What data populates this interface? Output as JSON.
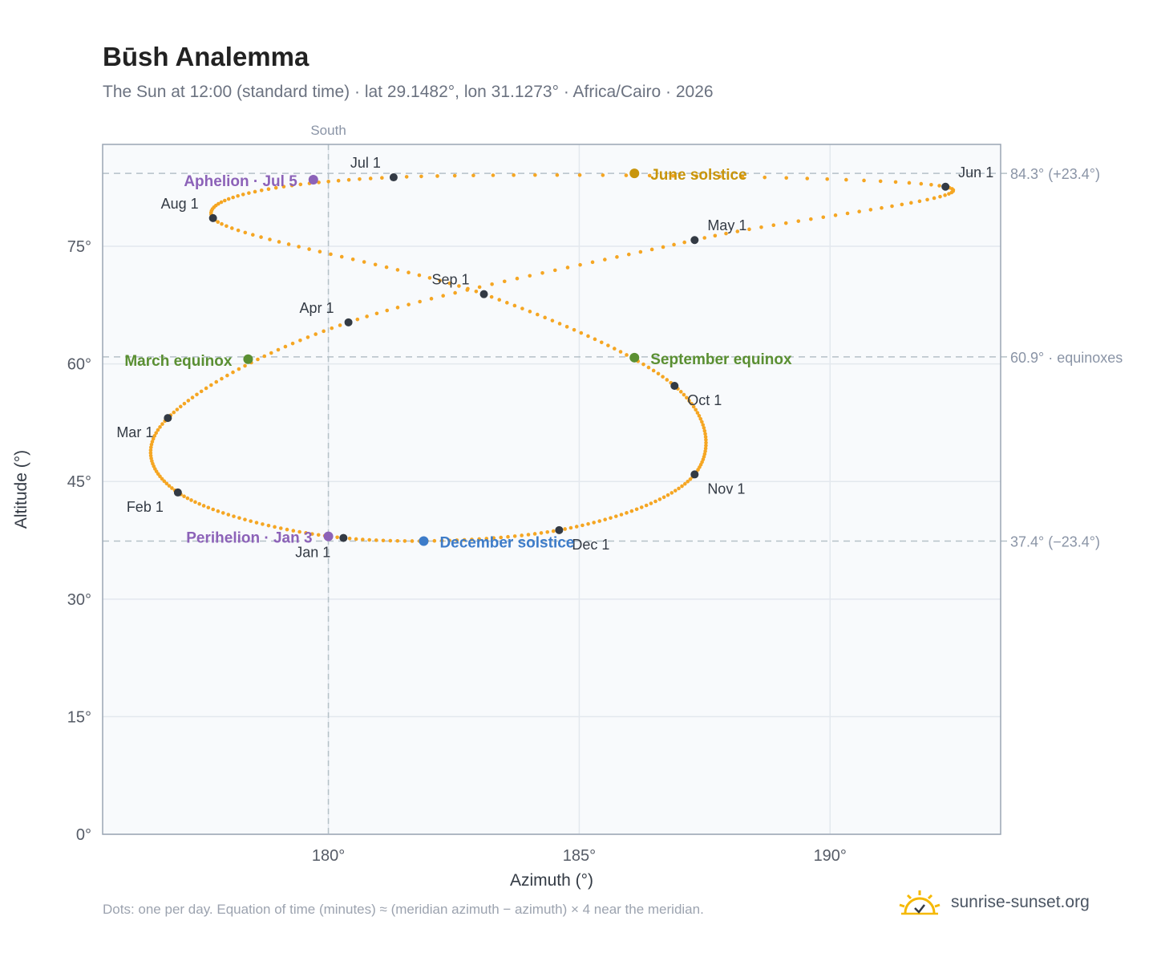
{
  "header": {
    "title": "Būsh Analemma",
    "subtitle": "The Sun at 12:00 (standard time) · lat 29.1482°, lon 31.1273° · Africa/Cairo · 2026"
  },
  "footer": {
    "note": "Dots: one per day. Equation of time (minutes) ≈ (meridian azimuth − azimuth) × 4 near the meridian.",
    "brand": "sunrise-sunset.org"
  },
  "icons": {
    "brand": "sun-icon"
  },
  "colors": {
    "path": "#f5a623",
    "month": "#333a44",
    "june": "#c8950c",
    "equinox": "#5a8f32",
    "december": "#3d7cc9",
    "apsis": "#8c62b8"
  },
  "chart_data": {
    "type": "scatter",
    "xlabel": "Azimuth (°)",
    "ylabel": "Altitude (°)",
    "xlim": [
      175.5,
      193.4
    ],
    "ylim": [
      0,
      88
    ],
    "xticks": [
      180,
      185,
      190
    ],
    "xtick_labels": [
      "180°",
      "185°",
      "190°"
    ],
    "yticks": [
      0,
      15,
      30,
      45,
      60,
      75
    ],
    "ytick_labels": [
      "0°",
      "15°",
      "30°",
      "45°",
      "60°",
      "75°"
    ],
    "grid": true,
    "meridian": {
      "x": 180,
      "label": "South"
    },
    "reference_lines": [
      {
        "y": 84.3,
        "label": "84.3° (+23.4°)"
      },
      {
        "y": 60.9,
        "label": "60.9° · equinoxes"
      },
      {
        "y": 37.4,
        "label": "37.4° (−23.4°)"
      }
    ],
    "monthly_points": [
      {
        "label": "Jan 1",
        "az": 180.3,
        "alt": 37.8
      },
      {
        "label": "Feb 1",
        "az": 177.0,
        "alt": 43.6
      },
      {
        "label": "Mar 1",
        "az": 176.8,
        "alt": 53.1
      },
      {
        "label": "Apr 1",
        "az": 180.4,
        "alt": 65.3
      },
      {
        "label": "May 1",
        "az": 187.3,
        "alt": 75.8
      },
      {
        "label": "Jun 1",
        "az": 192.3,
        "alt": 82.6
      },
      {
        "label": "Jul 1",
        "az": 181.3,
        "alt": 83.8
      },
      {
        "label": "Aug 1",
        "az": 177.7,
        "alt": 78.6
      },
      {
        "label": "Sep 1",
        "az": 183.1,
        "alt": 68.9
      },
      {
        "label": "Oct 1",
        "az": 186.9,
        "alt": 57.2
      },
      {
        "label": "Nov 1",
        "az": 187.3,
        "alt": 45.9
      },
      {
        "label": "Dec 1",
        "az": 184.6,
        "alt": 38.8
      }
    ],
    "events": [
      {
        "label": "June solstice",
        "az": 186.1,
        "alt": 84.3,
        "color_key": "june"
      },
      {
        "label": "March equinox",
        "az": 178.4,
        "alt": 60.6,
        "color_key": "equinox"
      },
      {
        "label": "September equinox",
        "az": 186.1,
        "alt": 60.8,
        "color_key": "equinox"
      },
      {
        "label": "December solstice",
        "az": 181.9,
        "alt": 37.4,
        "color_key": "december"
      },
      {
        "label": "Aphelion · Jul 5",
        "az": 179.7,
        "alt": 83.5,
        "color_key": "apsis"
      },
      {
        "label": "Perihelion · Jan 3",
        "az": 180.0,
        "alt": 38.0,
        "color_key": "apsis"
      }
    ]
  }
}
